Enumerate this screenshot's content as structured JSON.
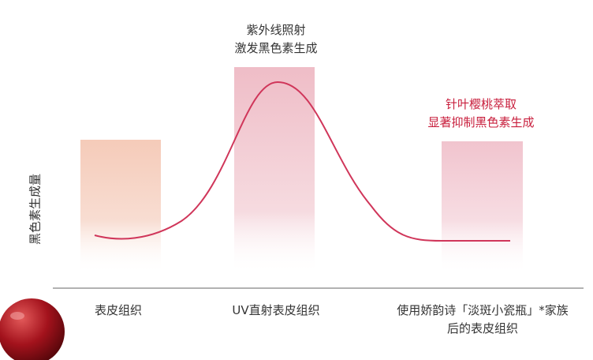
{
  "y_axis_label": "黑色素生成量",
  "annotations": [
    {
      "lines": [
        "紫外线照射",
        "激发黑色素生成"
      ]
    },
    {
      "lines": [
        "针叶樱桃萃取",
        "显著抑制黑色素生成"
      ]
    }
  ],
  "categories": [
    {
      "lines": [
        "表皮组织"
      ]
    },
    {
      "lines": [
        "UV直射表皮组织"
      ]
    },
    {
      "lines": [
        "使用娇韵诗「淡斑小瓷瓶」*家族",
        "后的表皮组织"
      ]
    }
  ]
}
